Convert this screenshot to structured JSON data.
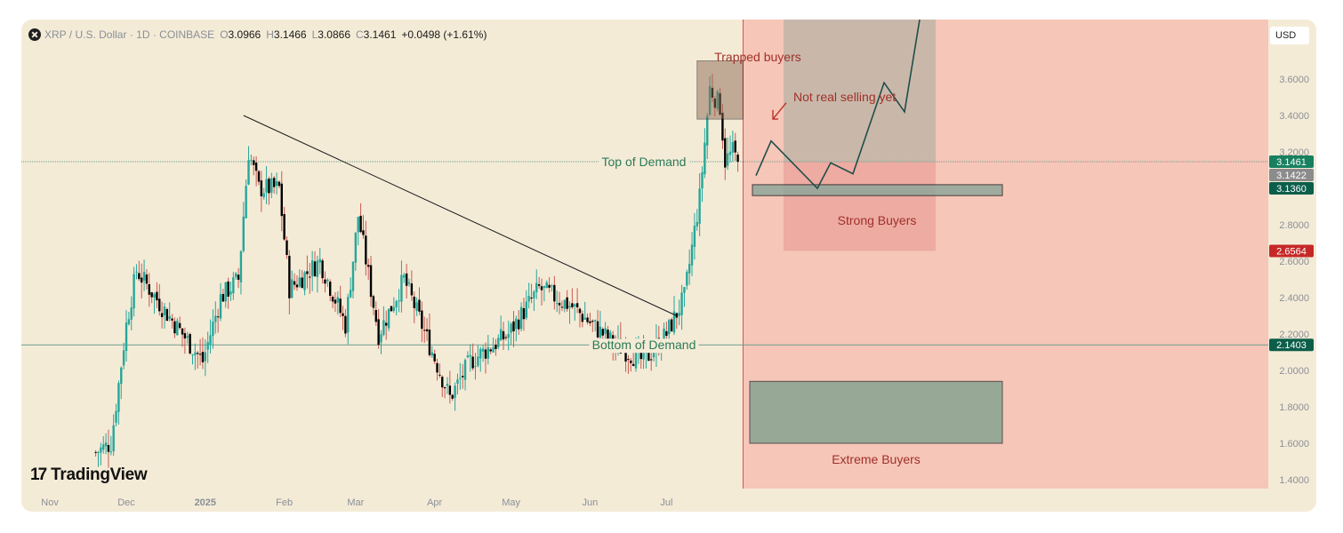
{
  "header": {
    "symbol_icon": "x-circle-icon",
    "symbol": "XRP / U.S. Dollar",
    "interval": "1D",
    "exchange": "COINBASE",
    "open_key": "O",
    "open": "3.0966",
    "high_key": "H",
    "high": "3.1466",
    "low_key": "L",
    "low": "3.0866",
    "close_key": "C",
    "close": "3.1461",
    "change": "+0.0498 (+1.61%)"
  },
  "currency_button": "USD",
  "logo": {
    "mark": "17",
    "text": "TradingView"
  },
  "colors": {
    "background": "#f4ebd7",
    "up": "#26a69a",
    "down": "#000000",
    "label_green": "#2a7a57",
    "label_red": "#a0302a",
    "zone_red": "#f6c0b3",
    "price_tag_green": "#17805f",
    "price_tag_dark": "#0b5e4a",
    "price_tag_red": "#c62828",
    "price_tag_gray": "#8c8c8c"
  },
  "chart_data": {
    "type": "candlestick",
    "x_axis_labels": [
      "Nov",
      "Dec",
      "2025",
      "Feb",
      "Mar",
      "Apr",
      "May",
      "Jun",
      "Jul"
    ],
    "y_ticks": [
      "3.6000",
      "3.4000",
      "3.2000",
      "2.8000",
      "2.6000",
      "2.4000",
      "2.2000",
      "2.0000",
      "1.8000",
      "1.6000",
      "1.4000"
    ],
    "ylim": [
      1.4,
      3.8
    ],
    "price_tags": [
      {
        "value": "3.1461",
        "kind": "last"
      },
      {
        "value": "3.1422",
        "kind": "gray"
      },
      {
        "value": "3.1360",
        "kind": "dark"
      },
      {
        "value": "2.6564",
        "kind": "red"
      },
      {
        "value": "2.1403",
        "kind": "dark"
      }
    ],
    "annotations": {
      "top_of_demand": "Top of Demand",
      "bottom_of_demand": "Bottom of Demand",
      "trapped_buyers": "Trapped buyers",
      "not_real_selling": "Not real selling yet",
      "strong_buyers": "Strong Buyers",
      "extreme_buyers": "Extreme Buyers"
    },
    "levels": {
      "top_of_demand": 3.1461,
      "bottom_of_demand": 2.1403
    },
    "path_keypoints": [
      [
        "2024-11-01",
        1.4
      ],
      [
        "2024-11-25",
        1.6
      ],
      [
        "2024-12-01",
        2.25
      ],
      [
        "2024-12-05",
        2.55
      ],
      [
        "2024-12-15",
        2.35
      ],
      [
        "2024-12-31",
        2.05
      ],
      [
        "2025-01-07",
        2.4
      ],
      [
        "2025-01-14",
        2.5
      ],
      [
        "2025-01-18",
        3.2
      ],
      [
        "2025-01-22",
        3.0
      ],
      [
        "2025-01-30",
        3.0
      ],
      [
        "2025-02-03",
        2.45
      ],
      [
        "2025-02-15",
        2.6
      ],
      [
        "2025-02-25",
        2.25
      ],
      [
        "2025-03-02",
        2.85
      ],
      [
        "2025-03-10",
        2.2
      ],
      [
        "2025-03-20",
        2.5
      ],
      [
        "2025-04-07",
        1.85
      ],
      [
        "2025-04-15",
        2.05
      ],
      [
        "2025-04-30",
        2.2
      ],
      [
        "2025-05-12",
        2.45
      ],
      [
        "2025-05-25",
        2.35
      ],
      [
        "2025-06-10",
        2.15
      ],
      [
        "2025-06-22",
        2.05
      ],
      [
        "2025-07-01",
        2.2
      ],
      [
        "2025-07-08",
        2.4
      ],
      [
        "2025-07-14",
        2.95
      ],
      [
        "2025-07-18",
        3.55
      ],
      [
        "2025-07-22",
        3.45
      ],
      [
        "2025-07-24",
        3.15
      ],
      [
        "2025-07-27",
        3.2
      ],
      [
        "2025-07-29",
        3.1461
      ]
    ]
  }
}
